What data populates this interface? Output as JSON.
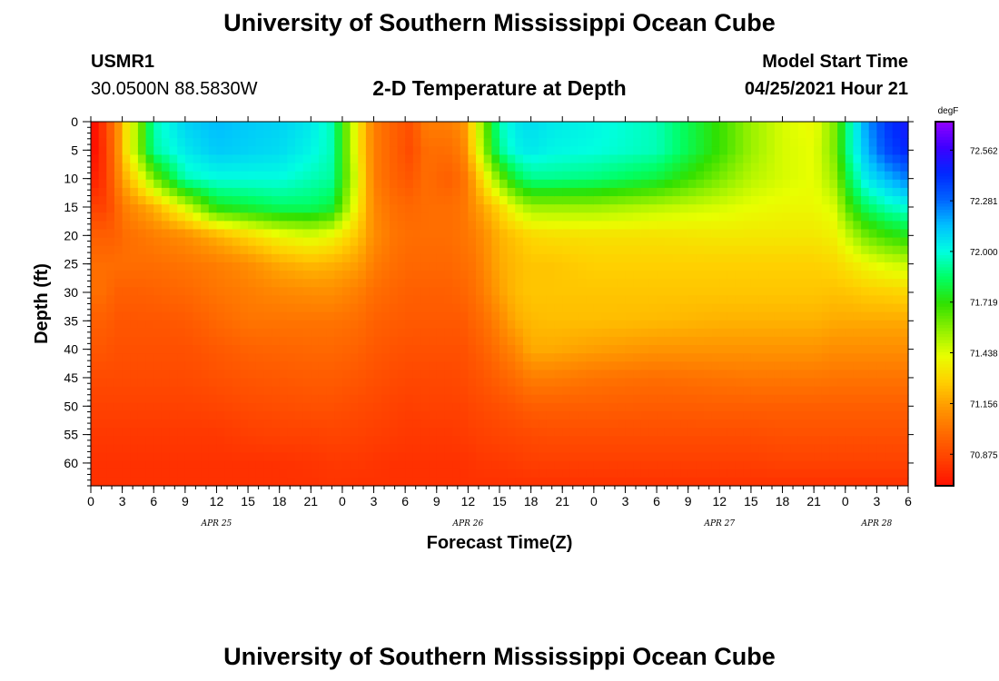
{
  "page": {
    "title": "University of Southern Mississippi Ocean Cube",
    "footer_title": "University of Southern Mississippi Ocean Cube",
    "station_id": "USMR1",
    "coordinates": "30.0500N  88.5830W",
    "plot_title": "2-D Temperature at Depth",
    "model_start_label": "Model Start Time",
    "model_start_value": "04/25/2021 Hour 21"
  },
  "chart_data": {
    "type": "heatmap",
    "title": "2-D Temperature at Depth",
    "xlabel": "Forecast Time(Z)",
    "ylabel": "Depth (ft)",
    "x_unit": "forecast hours from 04/25 00Z",
    "xlim": [
      0,
      78
    ],
    "ylim": [
      0,
      64
    ],
    "y_reversed": true,
    "x_tick_values": [
      0,
      3,
      6,
      9,
      12,
      15,
      18,
      21,
      24,
      27,
      30,
      33,
      36,
      39,
      42,
      45,
      48,
      51,
      54,
      57,
      60,
      63,
      66,
      69,
      72,
      75,
      78
    ],
    "x_tick_labels": [
      "0",
      "3",
      "6",
      "9",
      "12",
      "15",
      "18",
      "21",
      "0",
      "3",
      "6",
      "9",
      "12",
      "15",
      "18",
      "21",
      "0",
      "3",
      "6",
      "9",
      "12",
      "15",
      "18",
      "21",
      "0",
      "3",
      "6"
    ],
    "y_ticks": [
      0,
      5,
      10,
      15,
      20,
      25,
      30,
      35,
      40,
      45,
      50,
      55,
      60
    ],
    "date_labels": [
      {
        "text": "APR 25",
        "hour": 12
      },
      {
        "text": "APR 26",
        "hour": 36
      },
      {
        "text": "APR 27",
        "hour": 60
      },
      {
        "text": "APR 28",
        "hour": 75
      }
    ],
    "colorbar": {
      "unit": "degF",
      "labels": [
        "72.562",
        "72.281",
        "72.000",
        "71.719",
        "71.438",
        "71.156",
        "70.875"
      ],
      "label_values": [
        72.562,
        72.281,
        72.0,
        71.719,
        71.438,
        71.156,
        70.875
      ],
      "min": 70.7,
      "max": 72.72,
      "colors": [
        "#9400ff",
        "#3c00ff",
        "#0028ff",
        "#0064ff",
        "#00c0ff",
        "#00ffe0",
        "#00ff64",
        "#30e000",
        "#90f000",
        "#e8ff00",
        "#ffd000",
        "#ff9800",
        "#ff6a00",
        "#ff4000",
        "#ff1000"
      ]
    },
    "grid": false,
    "legend": "right colorbar",
    "series": [
      {
        "x": [
          0,
          0.8,
          1.5,
          2.3,
          3.2,
          4.5,
          6,
          9,
          12,
          15,
          18,
          21,
          23,
          25.5,
          27,
          29,
          30.5,
          32,
          34,
          35.5,
          36.5,
          37.5,
          39,
          40.5,
          42,
          44,
          48,
          54,
          60,
          63,
          66,
          69,
          71,
          72.5,
          74,
          76,
          78
        ],
        "depths": [
          0,
          5,
          10,
          15,
          20,
          25,
          30,
          35,
          40,
          45,
          50,
          55,
          60,
          64
        ],
        "z": [
          [
            70.7,
            70.7,
            70.75,
            70.85,
            70.95,
            71.0,
            71.0,
            70.95,
            70.92,
            70.88,
            70.85,
            70.82,
            70.8,
            70.8
          ],
          [
            70.72,
            70.72,
            70.76,
            70.85,
            70.95,
            71.0,
            71.0,
            70.95,
            70.92,
            70.88,
            70.85,
            70.82,
            70.8,
            70.8
          ],
          [
            70.92,
            70.88,
            70.85,
            70.85,
            70.95,
            71.0,
            71.0,
            70.95,
            70.92,
            70.88,
            70.85,
            70.82,
            70.8,
            70.8
          ],
          [
            71.0,
            71.0,
            71.0,
            70.95,
            70.95,
            71.0,
            70.95,
            70.92,
            70.9,
            70.88,
            70.85,
            70.82,
            70.8,
            70.8
          ],
          [
            71.3,
            71.3,
            71.18,
            71.05,
            71.0,
            71.0,
            70.95,
            70.92,
            70.9,
            70.88,
            70.85,
            70.82,
            70.8,
            70.8
          ],
          [
            71.55,
            71.55,
            71.35,
            71.12,
            71.02,
            71.0,
            70.95,
            70.92,
            70.9,
            70.88,
            70.85,
            70.82,
            70.8,
            70.8
          ],
          [
            71.95,
            71.92,
            71.6,
            71.2,
            71.05,
            71.0,
            70.96,
            70.92,
            70.9,
            70.88,
            70.85,
            70.82,
            70.8,
            70.8
          ],
          [
            72.1,
            72.05,
            71.95,
            71.45,
            71.1,
            71.02,
            70.98,
            70.93,
            70.9,
            70.88,
            70.85,
            70.82,
            70.8,
            70.8
          ],
          [
            72.15,
            72.12,
            72.0,
            71.75,
            71.2,
            71.05,
            71.02,
            70.98,
            70.93,
            70.9,
            70.86,
            70.82,
            70.8,
            70.8
          ],
          [
            72.12,
            72.1,
            72.0,
            71.8,
            71.3,
            71.1,
            71.05,
            71.02,
            70.96,
            70.92,
            70.88,
            70.84,
            70.8,
            70.8
          ],
          [
            72.1,
            72.08,
            72.0,
            71.85,
            71.4,
            71.18,
            71.08,
            71.02,
            70.97,
            70.93,
            70.89,
            70.85,
            70.8,
            70.8
          ],
          [
            72.05,
            72.02,
            71.95,
            71.85,
            71.45,
            71.22,
            71.1,
            71.02,
            70.98,
            70.94,
            70.9,
            70.85,
            70.81,
            70.8
          ],
          [
            71.95,
            71.95,
            71.92,
            71.8,
            71.4,
            71.2,
            71.1,
            71.02,
            70.98,
            70.94,
            70.9,
            70.86,
            70.82,
            70.81
          ],
          [
            71.35,
            71.35,
            71.4,
            71.35,
            71.25,
            71.15,
            71.05,
            71.0,
            70.96,
            70.92,
            70.88,
            70.85,
            70.82,
            70.8
          ],
          [
            71.05,
            71.05,
            71.05,
            71.08,
            71.1,
            71.05,
            71.0,
            70.96,
            70.93,
            70.9,
            70.87,
            70.84,
            70.81,
            70.8
          ],
          [
            70.95,
            70.95,
            70.96,
            71.0,
            71.02,
            71.0,
            70.97,
            70.94,
            70.91,
            70.88,
            70.85,
            70.83,
            70.8,
            70.8
          ],
          [
            70.9,
            70.88,
            70.92,
            70.98,
            71.0,
            70.98,
            70.95,
            70.93,
            70.9,
            70.87,
            70.84,
            70.82,
            70.8,
            70.8
          ],
          [
            71.05,
            71.0,
            71.0,
            71.0,
            71.0,
            70.98,
            70.95,
            70.93,
            70.9,
            70.87,
            70.85,
            70.82,
            70.8,
            70.8
          ],
          [
            71.05,
            71.0,
            70.95,
            71.0,
            71.0,
            70.98,
            70.95,
            70.93,
            70.9,
            70.87,
            70.85,
            70.82,
            70.8,
            70.8
          ],
          [
            71.1,
            71.05,
            71.0,
            71.02,
            71.02,
            71.0,
            70.97,
            70.93,
            70.9,
            70.88,
            70.85,
            70.83,
            70.8,
            70.8
          ],
          [
            71.35,
            71.3,
            71.15,
            71.1,
            71.05,
            71.02,
            71.0,
            70.97,
            70.93,
            70.9,
            70.87,
            70.84,
            70.81,
            70.8
          ],
          [
            71.6,
            71.55,
            71.35,
            71.18,
            71.1,
            71.08,
            71.05,
            71.0,
            70.96,
            70.92,
            70.88,
            70.85,
            70.82,
            70.8
          ],
          [
            71.95,
            71.9,
            71.6,
            71.3,
            71.2,
            71.18,
            71.15,
            71.08,
            71.02,
            70.96,
            70.9,
            70.86,
            70.82,
            70.8
          ],
          [
            72.05,
            72.02,
            71.8,
            71.45,
            71.25,
            71.22,
            71.22,
            71.18,
            71.08,
            71.0,
            70.92,
            70.87,
            70.83,
            70.8
          ],
          [
            72.08,
            72.05,
            71.9,
            71.55,
            71.3,
            71.25,
            71.25,
            71.22,
            71.18,
            71.05,
            70.95,
            70.88,
            70.84,
            70.8
          ],
          [
            72.05,
            72.02,
            71.9,
            71.55,
            71.32,
            71.25,
            71.25,
            71.23,
            71.18,
            71.05,
            70.95,
            70.89,
            70.84,
            70.8
          ],
          [
            72.02,
            72.0,
            71.88,
            71.55,
            71.33,
            71.28,
            71.25,
            71.23,
            71.15,
            71.02,
            70.95,
            70.89,
            70.84,
            70.8
          ],
          [
            71.95,
            71.95,
            71.8,
            71.5,
            71.33,
            71.28,
            71.25,
            71.22,
            71.12,
            71.0,
            70.94,
            70.89,
            70.84,
            70.8
          ],
          [
            71.7,
            71.7,
            71.6,
            71.45,
            71.35,
            71.28,
            71.25,
            71.2,
            71.12,
            71.02,
            70.95,
            70.89,
            70.84,
            70.8
          ],
          [
            71.55,
            71.55,
            71.5,
            71.42,
            71.35,
            71.28,
            71.25,
            71.2,
            71.12,
            71.03,
            70.95,
            70.89,
            70.84,
            70.8
          ],
          [
            71.45,
            71.45,
            71.45,
            71.4,
            71.35,
            71.28,
            71.25,
            71.2,
            71.12,
            71.03,
            70.95,
            70.9,
            70.85,
            70.8
          ],
          [
            71.4,
            71.42,
            71.42,
            71.4,
            71.35,
            71.28,
            71.25,
            71.2,
            71.12,
            71.03,
            70.95,
            70.9,
            70.85,
            70.8
          ],
          [
            71.6,
            71.6,
            71.55,
            71.45,
            71.38,
            71.3,
            71.24,
            71.18,
            71.1,
            71.02,
            70.95,
            70.9,
            70.85,
            70.8
          ],
          [
            71.95,
            71.95,
            71.85,
            71.7,
            71.5,
            71.35,
            71.25,
            71.18,
            71.1,
            71.02,
            70.95,
            70.9,
            70.85,
            70.8
          ],
          [
            72.2,
            72.15,
            72.05,
            71.85,
            71.62,
            71.4,
            71.27,
            71.18,
            71.1,
            71.02,
            70.95,
            70.9,
            70.85,
            70.8
          ],
          [
            72.4,
            72.35,
            72.15,
            71.95,
            71.7,
            71.45,
            71.28,
            71.18,
            71.1,
            71.02,
            70.95,
            70.9,
            70.85,
            70.8
          ],
          [
            72.5,
            72.45,
            72.25,
            72.0,
            71.75,
            71.48,
            71.3,
            71.18,
            71.1,
            71.02,
            70.95,
            70.9,
            70.85,
            70.8
          ]
        ]
      }
    ]
  }
}
